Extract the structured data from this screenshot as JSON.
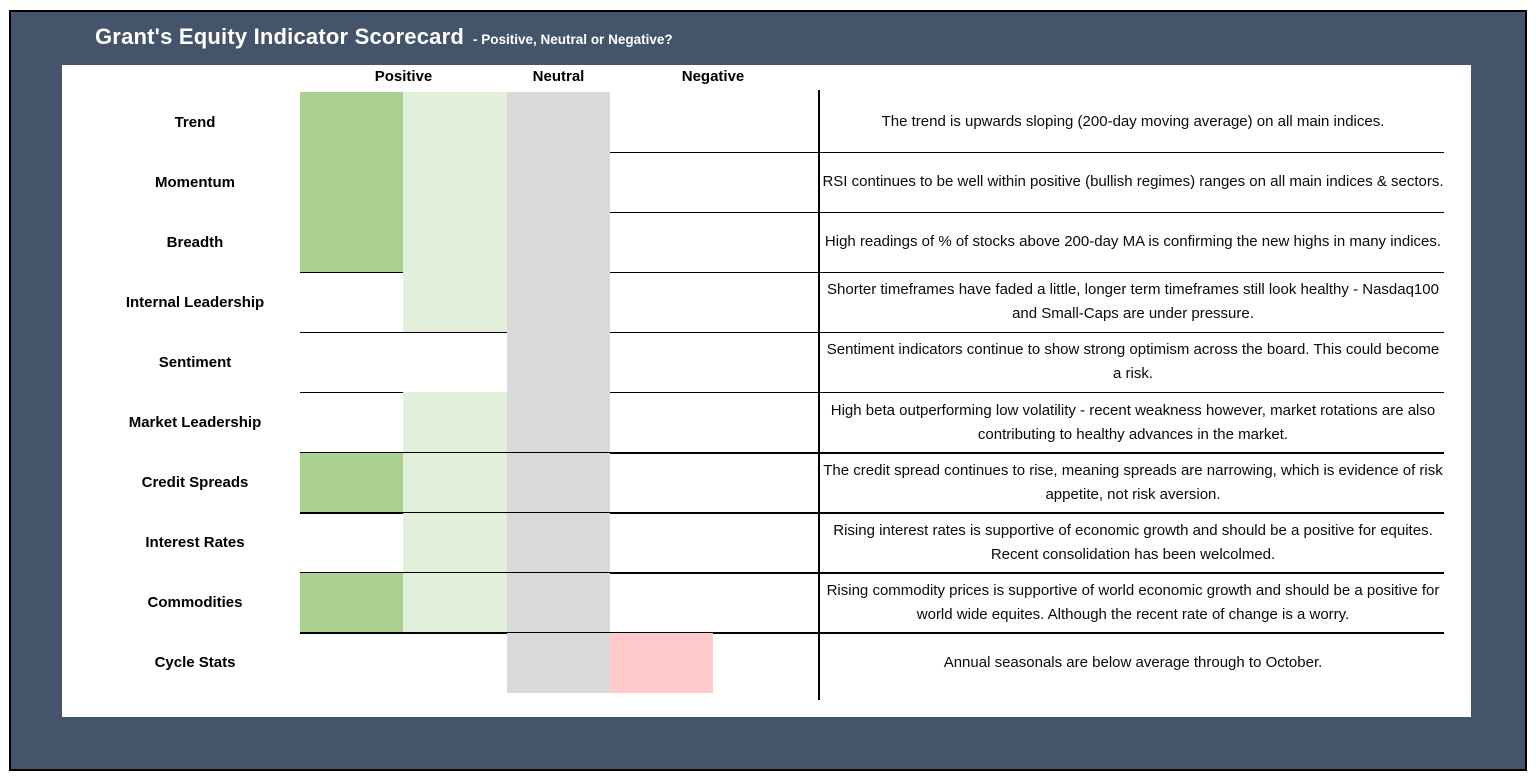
{
  "header": {
    "title": "Grant's Equity Indicator Scorecard",
    "subtitle": "- Positive, Neutral or Negative?"
  },
  "colors": {
    "frame_background": "#44546A",
    "strong_positive": "#A9D08E",
    "mild_positive": "#E2EFDA",
    "neutral": "#D9D9D9",
    "negative": "#FFC9CC"
  },
  "table": {
    "column_headers": [
      "Positive",
      "Neutral",
      "Negative"
    ],
    "rows": [
      {
        "label": "Trend",
        "cells": [
          "strong_positive",
          "mild_positive",
          "neutral",
          "none"
        ],
        "comment": "The trend is upwards sloping (200-day moving average) on all main indices."
      },
      {
        "label": "Momentum",
        "cells": [
          "strong_positive",
          "mild_positive",
          "neutral",
          "none"
        ],
        "comment": "RSI continues to be well within positive (bullish regimes) ranges on all main indices & sectors."
      },
      {
        "label": "Breadth",
        "cells": [
          "strong_positive",
          "mild_positive",
          "neutral",
          "none"
        ],
        "comment": "High readings of % of stocks above 200-day MA is confirming the new highs in many indices."
      },
      {
        "label": "Internal Leadership",
        "cells": [
          "none",
          "mild_positive",
          "neutral",
          "none"
        ],
        "comment": "Shorter timeframes have faded a little, longer term timeframes still look healthy - Nasdaq100 and Small-Caps are under pressure."
      },
      {
        "label": "Sentiment",
        "cells": [
          "none",
          "none",
          "neutral",
          "none"
        ],
        "comment": "Sentiment indicators continue to show strong optimism across the board. This could become a risk."
      },
      {
        "label": "Market Leadership",
        "cells": [
          "none",
          "mild_positive",
          "neutral",
          "none"
        ],
        "comment": "High beta outperforming low volatility - recent weakness however, market rotations are also contributing to healthy advances in the market."
      },
      {
        "label": "Credit Spreads",
        "cells": [
          "strong_positive",
          "mild_positive",
          "neutral",
          "none"
        ],
        "comment": "The credit spread continues to rise, meaning spreads are narrowing, which is evidence of risk appetite, not risk aversion."
      },
      {
        "label": "Interest Rates",
        "cells": [
          "none",
          "mild_positive",
          "neutral",
          "none"
        ],
        "comment": "Rising interest rates is supportive of economic growth and should be a positive for equites. Recent consolidation has been welcolmed."
      },
      {
        "label": "Commodities",
        "cells": [
          "strong_positive",
          "mild_positive",
          "neutral",
          "none"
        ],
        "comment": "Rising commodity prices is supportive of world economic growth and should be a positive for world wide equites. Although the recent rate of change is a worry."
      },
      {
        "label": "Cycle Stats",
        "cells": [
          "none",
          "none",
          "neutral",
          "negative"
        ],
        "comment": "Annual seasonals are below average through to October."
      }
    ]
  }
}
